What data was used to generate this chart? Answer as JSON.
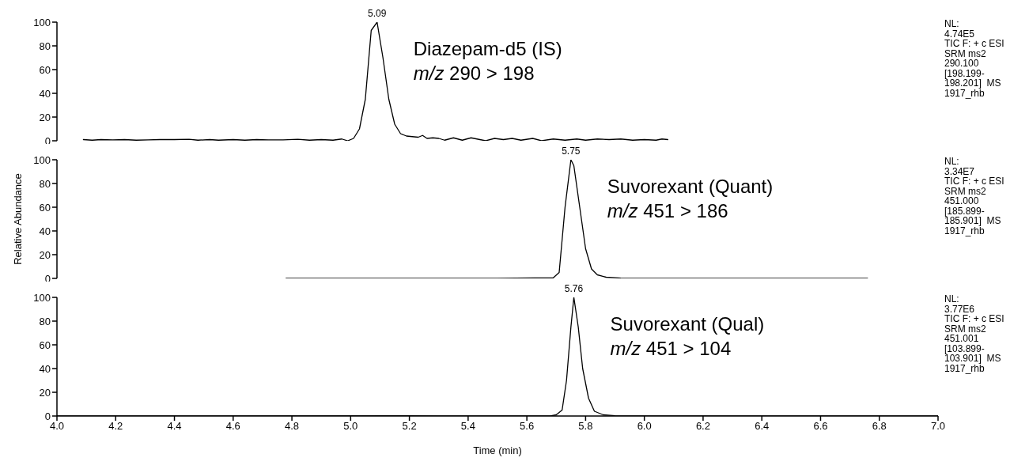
{
  "chart_data": [
    {
      "type": "line",
      "xlim": [
        4,
        7
      ],
      "ylim": [
        0,
        100
      ],
      "yticks": [
        0,
        20,
        40,
        60,
        80,
        100
      ],
      "tick_labels": "y",
      "series": [
        {
          "color": "#000000",
          "x": [
            4.09,
            4.12,
            4.15,
            4.19,
            4.23,
            4.27,
            4.31,
            4.35,
            4.4,
            4.45,
            4.48,
            4.52,
            4.55,
            4.6,
            4.64,
            4.68,
            4.72,
            4.77,
            4.82,
            4.86,
            4.9,
            4.94,
            4.97,
            4.99,
            5.01,
            5.03,
            5.05,
            5.07,
            5.09,
            5.11,
            5.13,
            5.15,
            5.17,
            5.19,
            5.21,
            5.23,
            5.245,
            5.26,
            5.28,
            5.3,
            5.32,
            5.35,
            5.38,
            5.41,
            5.44,
            5.46,
            5.49,
            5.52,
            5.55,
            5.58,
            5.62,
            5.65,
            5.69,
            5.73,
            5.77,
            5.8,
            5.84,
            5.88,
            5.92,
            5.96,
            6.0,
            6.04,
            6.06,
            6.08
          ],
          "values": [
            1,
            0.5,
            1,
            0.8,
            1,
            0.5,
            0.8,
            1,
            1,
            1.2,
            0.5,
            1,
            0.5,
            1,
            0.5,
            1,
            0.8,
            0.8,
            1.2,
            0.5,
            1,
            0.5,
            1.5,
            0,
            2,
            10,
            35,
            93,
            100,
            70,
            35,
            14,
            6,
            4,
            3.5,
            3,
            4.5,
            2,
            2.5,
            2,
            0.5,
            2.5,
            0.5,
            2.5,
            1,
            0,
            2,
            1,
            2,
            0.5,
            2,
            0,
            1.5,
            0.5,
            1.5,
            0.5,
            1.5,
            1,
            1.5,
            0.5,
            1,
            0.5,
            1.5,
            1
          ]
        }
      ],
      "annotations": [
        {
          "text": "5.09",
          "x": 5.09,
          "y": 100
        },
        "Diazepam-d5 (IS)",
        "m/z 290 > 198",
        "NL:\n4.74E5\nTIC F: + c ESI\nSRM ms2\n290.100\n[198.199-\n198.201]  MS\n1917_rhb"
      ]
    },
    {
      "type": "line",
      "ylabel": "Relative Abundance",
      "xlim": [
        4,
        7
      ],
      "ylim": [
        0,
        100
      ],
      "yticks": [
        0,
        20,
        40,
        60,
        80,
        100
      ],
      "tick_labels": "y",
      "series": [
        {
          "color": "#000000",
          "x": [
            4.78,
            5.0,
            5.5,
            5.69,
            5.71,
            5.73,
            5.75,
            5.76,
            5.78,
            5.8,
            5.82,
            5.84,
            5.87,
            5.92,
            6.2,
            6.76
          ],
          "values": [
            0,
            0,
            0,
            0.5,
            5,
            60,
            100,
            95,
            60,
            25,
            8,
            3,
            1,
            0.3,
            0,
            0
          ]
        }
      ],
      "annotations": [
        {
          "text": "5.75",
          "x": 5.75,
          "y": 100
        },
        "Suvorexant (Quant)",
        "m/z 451 > 186",
        "NL:\n3.34E7\nTIC F: + c ESI\nSRM ms2\n451.000\n[185.899-\n185.901]  MS\n1917_rhb"
      ]
    },
    {
      "type": "line",
      "xlabel": "Time (min)",
      "xlim": [
        4,
        7
      ],
      "ylim": [
        0,
        100
      ],
      "yticks": [
        0,
        20,
        40,
        60,
        80,
        100
      ],
      "xticks": [
        {
          "value": 4,
          "label": "4.0"
        },
        {
          "value": 4.2,
          "label": "4.2"
        },
        {
          "value": 4.4,
          "label": "4.4"
        },
        {
          "value": 4.6,
          "label": "4.6"
        },
        {
          "value": 4.8,
          "label": "4.8"
        },
        {
          "value": 5,
          "label": "5.0"
        },
        {
          "value": 5.2,
          "label": "5.2"
        },
        {
          "value": 5.4,
          "label": "5.4"
        },
        {
          "value": 5.6,
          "label": "5.6"
        },
        {
          "value": 5.8,
          "label": "5.8"
        },
        {
          "value": 6,
          "label": "6.0"
        },
        {
          "value": 6.2,
          "label": "6.2"
        },
        {
          "value": 6.4,
          "label": "6.4"
        },
        {
          "value": 6.6,
          "label": "6.6"
        },
        {
          "value": 6.8,
          "label": "6.8"
        },
        {
          "value": 7,
          "label": "7.0"
        }
      ],
      "series": [
        {
          "color": "#000000",
          "x": [
            4.0,
            5.2,
            5.3,
            5.68,
            5.7,
            5.72,
            5.735,
            5.75,
            5.76,
            5.775,
            5.79,
            5.81,
            5.83,
            5.86,
            5.9,
            6.2,
            7.0
          ],
          "values": [
            0,
            0.3,
            0,
            0,
            1,
            5,
            30,
            75,
            100,
            75,
            40,
            15,
            4,
            1,
            0.3,
            0,
            0
          ]
        }
      ],
      "annotations": [
        {
          "text": "5.76",
          "x": 5.76,
          "y": 100
        },
        "Suvorexant (Qual)",
        "m/z 451 > 104",
        "NL:\n3.77E6\nTIC F: + c ESI\nSRM ms2\n451.001\n[103.899-\n103.901]  MS\n1917_rhb"
      ]
    }
  ]
}
